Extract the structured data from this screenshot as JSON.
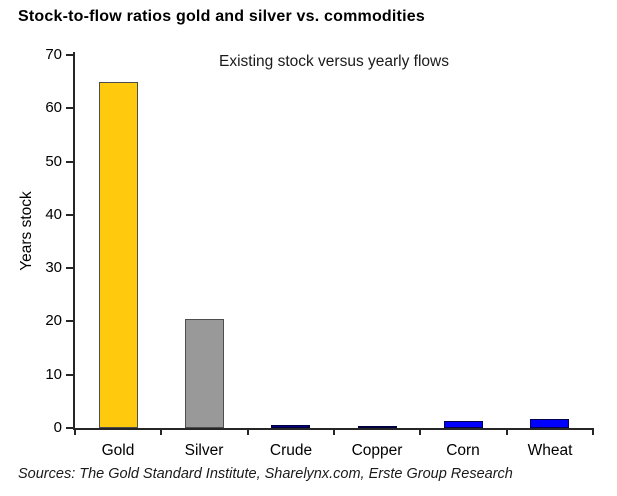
{
  "chart_data": {
    "type": "bar",
    "title": "Stock-to-flow ratios gold and silver vs. commodities",
    "subtitle": "Existing stock versus yearly flows",
    "ylabel": "Years stock",
    "xlabel": "",
    "ylim": [
      0,
      70
    ],
    "yticks": [
      0,
      10,
      20,
      30,
      40,
      50,
      60,
      70
    ],
    "grid": false,
    "legend": null,
    "categories": [
      "Gold",
      "Silver",
      "Crude",
      "Copper",
      "Corn",
      "Wheat"
    ],
    "values": [
      65,
      20.5,
      0.6,
      0.4,
      1.3,
      1.7
    ],
    "bar_colors": [
      "#FFC90E",
      "#999999",
      "#000080",
      "#000080",
      "#0000FF",
      "#0000FF"
    ],
    "bar_border_colors": [
      "#4d4d4d",
      "#4d4d4d",
      "#000040",
      "#000040",
      "#000050",
      "#000050"
    ],
    "axis_color": "#262626",
    "source": "Sources: The Gold Standard Institute, Sharelynx.com, Erste Group Research"
  }
}
